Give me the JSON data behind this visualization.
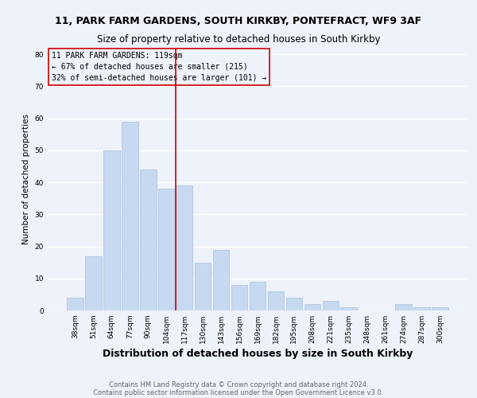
{
  "title1": "11, PARK FARM GARDENS, SOUTH KIRKBY, PONTEFRACT, WF9 3AF",
  "title2": "Size of property relative to detached houses in South Kirkby",
  "xlabel": "Distribution of detached houses by size in South Kirkby",
  "ylabel": "Number of detached properties",
  "categories": [
    "38sqm",
    "51sqm",
    "64sqm",
    "77sqm",
    "90sqm",
    "104sqm",
    "117sqm",
    "130sqm",
    "143sqm",
    "156sqm",
    "169sqm",
    "182sqm",
    "195sqm",
    "208sqm",
    "221sqm",
    "235sqm",
    "248sqm",
    "261sqm",
    "274sqm",
    "287sqm",
    "300sqm"
  ],
  "values": [
    4,
    17,
    50,
    59,
    44,
    38,
    39,
    15,
    19,
    8,
    9,
    6,
    4,
    2,
    3,
    1,
    0,
    0,
    2,
    1,
    1
  ],
  "bar_color": "#c6d9f0",
  "bar_edge_color": "#a8c0de",
  "highlight_line_index": 6,
  "annotation_line1": "11 PARK FARM GARDENS: 119sqm",
  "annotation_line2": "← 67% of detached houses are smaller (215)",
  "annotation_line3": "32% of semi-detached houses are larger (101) →",
  "annotation_box_color": "#cc0000",
  "ylim": [
    0,
    82
  ],
  "yticks": [
    0,
    10,
    20,
    30,
    40,
    50,
    60,
    70,
    80
  ],
  "footnote1": "Contains HM Land Registry data © Crown copyright and database right 2024.",
  "footnote2": "Contains public sector information licensed under the Open Government Licence v3.0.",
  "bg_color": "#eef2fa",
  "grid_color": "#ffffff",
  "title_fontsize": 9,
  "subtitle_fontsize": 8.5,
  "xlabel_fontsize": 9,
  "ylabel_fontsize": 7.5,
  "tick_fontsize": 6.5,
  "annotation_fontsize": 7,
  "footnote_fontsize": 6
}
